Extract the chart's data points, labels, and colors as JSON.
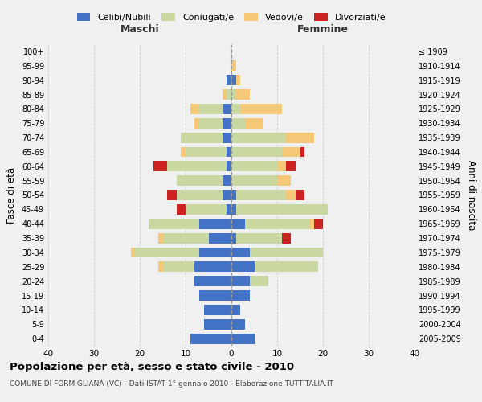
{
  "age_groups": [
    "100+",
    "95-99",
    "90-94",
    "85-89",
    "80-84",
    "75-79",
    "70-74",
    "65-69",
    "60-64",
    "55-59",
    "50-54",
    "45-49",
    "40-44",
    "35-39",
    "30-34",
    "25-29",
    "20-24",
    "15-19",
    "10-14",
    "5-9",
    "0-4"
  ],
  "birth_years": [
    "≤ 1909",
    "1910-1914",
    "1915-1919",
    "1920-1924",
    "1925-1929",
    "1930-1934",
    "1935-1939",
    "1940-1944",
    "1945-1949",
    "1950-1954",
    "1955-1959",
    "1960-1964",
    "1965-1969",
    "1970-1974",
    "1975-1979",
    "1980-1984",
    "1985-1989",
    "1990-1994",
    "1995-1999",
    "2000-2004",
    "2005-2009"
  ],
  "male": {
    "celibi": [
      0,
      0,
      1,
      0,
      2,
      2,
      2,
      1,
      1,
      2,
      2,
      1,
      7,
      5,
      7,
      8,
      8,
      7,
      6,
      6,
      9
    ],
    "coniugati": [
      0,
      0,
      0,
      1,
      5,
      5,
      9,
      9,
      13,
      10,
      10,
      9,
      11,
      10,
      14,
      7,
      0,
      0,
      0,
      0,
      0
    ],
    "vedovi": [
      0,
      0,
      0,
      1,
      2,
      1,
      0,
      1,
      0,
      0,
      0,
      0,
      0,
      1,
      1,
      1,
      0,
      0,
      0,
      0,
      0
    ],
    "divorziati": [
      0,
      0,
      0,
      0,
      0,
      0,
      0,
      0,
      3,
      0,
      2,
      2,
      0,
      0,
      0,
      0,
      0,
      0,
      0,
      0,
      0
    ]
  },
  "female": {
    "nubili": [
      0,
      0,
      1,
      0,
      0,
      0,
      0,
      0,
      0,
      0,
      1,
      1,
      3,
      1,
      4,
      5,
      4,
      4,
      2,
      3,
      5
    ],
    "coniugate": [
      0,
      0,
      0,
      1,
      2,
      3,
      12,
      11,
      10,
      10,
      11,
      20,
      14,
      10,
      16,
      14,
      4,
      0,
      0,
      0,
      0
    ],
    "vedove": [
      0,
      1,
      1,
      3,
      9,
      4,
      6,
      4,
      2,
      3,
      2,
      0,
      1,
      0,
      0,
      0,
      0,
      0,
      0,
      0,
      0
    ],
    "divorziate": [
      0,
      0,
      0,
      0,
      0,
      0,
      0,
      1,
      2,
      0,
      2,
      0,
      2,
      2,
      0,
      0,
      0,
      0,
      0,
      0,
      0
    ]
  },
  "colors": {
    "celibi_nubili": "#4472c4",
    "coniugati": "#c8d8a0",
    "vedovi": "#f5c878",
    "divorziati": "#cc2222"
  },
  "title": "Popolazione per età, sesso e stato civile - 2010",
  "subtitle": "COMUNE DI FORMIGLIANA (VC) - Dati ISTAT 1° gennaio 2010 - Elaborazione TUTTITALIA.IT",
  "xlabel_left": "Maschi",
  "xlabel_right": "Femmine",
  "ylabel_left": "Fasce di età",
  "ylabel_right": "Anni di nascita",
  "xlim": 40,
  "xticks": [
    -40,
    -30,
    -20,
    -10,
    0,
    10,
    20,
    30,
    40
  ],
  "background_color": "#f0f0f0",
  "grid_color": "#cccccc"
}
